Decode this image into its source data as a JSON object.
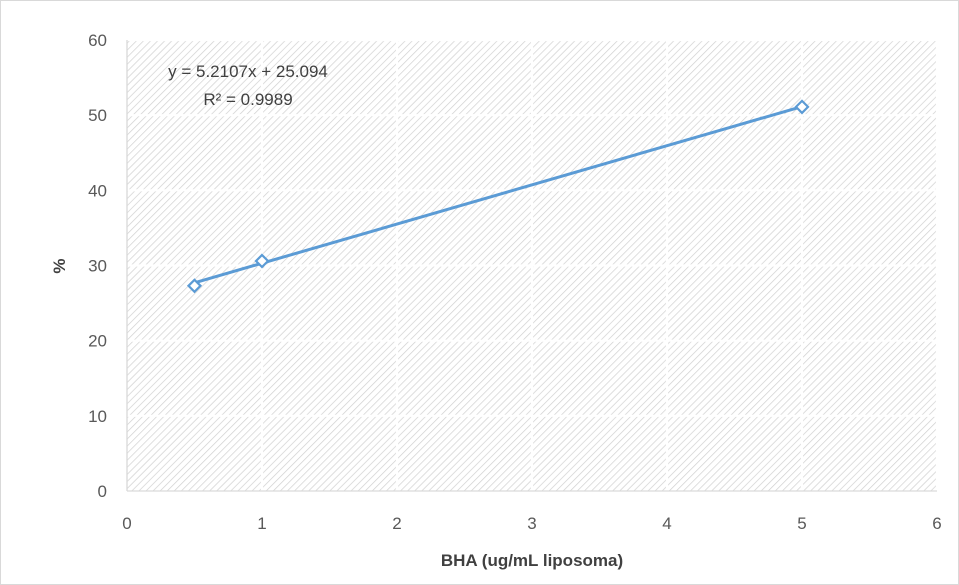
{
  "chart_data": {
    "type": "scatter",
    "title": "",
    "xlabel": "BHA (ug/mL liposoma)",
    "ylabel": "%",
    "xlim": [
      0,
      6
    ],
    "ylim": [
      0,
      60
    ],
    "x_ticks": [
      "0",
      "1",
      "2",
      "3",
      "4",
      "5",
      "6"
    ],
    "y_ticks": [
      "0",
      "10",
      "20",
      "30",
      "40",
      "50",
      "60"
    ],
    "grid": true,
    "series": [
      {
        "points": [
          {
            "x": 0.5,
            "y": 27.3
          },
          {
            "x": 1,
            "y": 30.6
          },
          {
            "x": 5,
            "y": 51.1
          }
        ],
        "color": "#5b9bd5",
        "marker": "diamond-open"
      }
    ],
    "trendline": {
      "type": "linear",
      "slope": 5.2107,
      "intercept": 25.094,
      "x_range": [
        0.5,
        5
      ],
      "equation": "y = 5.2107x + 25.094",
      "r_squared": "R² = 0.9989",
      "color": "#5b9bd5"
    },
    "plot_background": "hatched"
  }
}
